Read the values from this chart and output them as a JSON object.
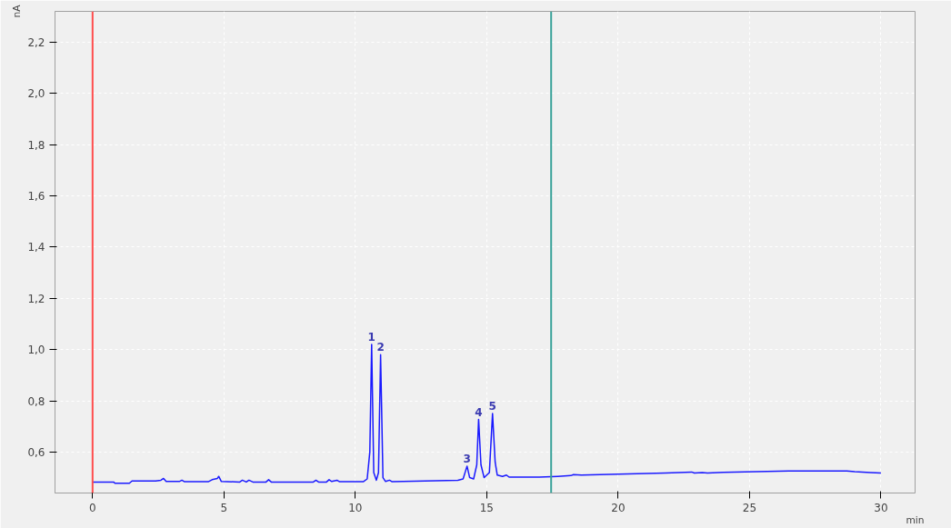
{
  "chart_data": {
    "type": "line",
    "xlabel": "min",
    "ylabel": "nA",
    "x": [
      0,
      0.8,
      0.85,
      1.4,
      1.5,
      2.4,
      2.6,
      2.7,
      2.8,
      3.3,
      3.4,
      3.5,
      4.4,
      4.55,
      4.75,
      4.8,
      4.9,
      5.6,
      5.7,
      5.85,
      5.95,
      6.1,
      6.6,
      6.7,
      6.8,
      8.4,
      8.5,
      8.6,
      8.9,
      9.0,
      9.1,
      9.3,
      9.4,
      10.3,
      10.45,
      10.55,
      10.62,
      10.7,
      10.8,
      10.88,
      10.96,
      11.05,
      11.15,
      11.3,
      11.4,
      13.9,
      14.1,
      14.25,
      14.35,
      14.5,
      14.62,
      14.69,
      14.78,
      14.9,
      15.1,
      15.22,
      15.32,
      15.4,
      15.6,
      15.75,
      15.85,
      17,
      17.7,
      18.2,
      18.3,
      18.6,
      20,
      21.8,
      22.8,
      22.9,
      23.2,
      23.4,
      24,
      26.5,
      28.7,
      29,
      29.6,
      30
    ],
    "series": [
      {
        "color": "#1a1aff",
        "values": [
          0.483,
          0.483,
          0.478,
          0.478,
          0.487,
          0.487,
          0.49,
          0.497,
          0.485,
          0.485,
          0.49,
          0.484,
          0.484,
          0.492,
          0.497,
          0.505,
          0.485,
          0.483,
          0.49,
          0.483,
          0.49,
          0.483,
          0.483,
          0.492,
          0.483,
          0.483,
          0.49,
          0.483,
          0.483,
          0.492,
          0.485,
          0.49,
          0.484,
          0.484,
          0.495,
          0.6,
          1.02,
          0.52,
          0.49,
          0.52,
          0.98,
          0.5,
          0.485,
          0.49,
          0.484,
          0.49,
          0.495,
          0.545,
          0.5,
          0.495,
          0.55,
          0.727,
          0.55,
          0.5,
          0.52,
          0.75,
          0.56,
          0.51,
          0.505,
          0.51,
          0.502,
          0.502,
          0.505,
          0.508,
          0.512,
          0.51,
          0.514,
          0.518,
          0.522,
          0.518,
          0.52,
          0.518,
          0.521,
          0.526,
          0.526,
          0.523,
          0.52,
          0.518
        ]
      }
    ],
    "xlim": [
      -1.43,
      31.3
    ],
    "ylim": [
      0.44,
      2.32
    ],
    "xticks": [
      0,
      5,
      10,
      15,
      20,
      25,
      30
    ],
    "yticks": [
      {
        "value": 0.6,
        "label": "0,6"
      },
      {
        "value": 0.8,
        "label": "0,8"
      },
      {
        "value": 1.0,
        "label": "1,0"
      },
      {
        "value": 1.2,
        "label": "1,2"
      },
      {
        "value": 1.4,
        "label": "1,4"
      },
      {
        "value": 1.6,
        "label": "1,6"
      },
      {
        "value": 1.8,
        "label": "1,8"
      },
      {
        "value": 2.0,
        "label": "2,0"
      },
      {
        "value": 2.2,
        "label": "2,2"
      }
    ],
    "ref_lines": [
      {
        "axis": "x",
        "value": 0,
        "color": "#ff4d4d"
      },
      {
        "axis": "x",
        "value": 17.45,
        "color": "#3aa39a"
      }
    ],
    "annotations": [
      {
        "text": "1",
        "x": 10.62,
        "y": 1.02
      },
      {
        "text": "2",
        "x": 10.96,
        "y": 0.98
      },
      {
        "text": "3",
        "x": 14.25,
        "y": 0.545
      },
      {
        "text": "4",
        "x": 14.69,
        "y": 0.727
      },
      {
        "text": "5",
        "x": 15.22,
        "y": 0.75
      }
    ],
    "grid": true
  }
}
